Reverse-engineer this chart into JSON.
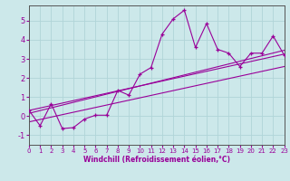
{
  "xlabel": "Windchill (Refroidissement éolien,°C)",
  "background_color": "#cce8ea",
  "grid_color": "#b0d4d8",
  "line_color": "#990099",
  "axis_color": "#555555",
  "xlim": [
    0,
    23
  ],
  "ylim": [
    -1.5,
    5.8
  ],
  "xticks": [
    0,
    1,
    2,
    3,
    4,
    5,
    6,
    7,
    8,
    9,
    10,
    11,
    12,
    13,
    14,
    15,
    16,
    17,
    18,
    19,
    20,
    21,
    22,
    23
  ],
  "yticks": [
    -1,
    0,
    1,
    2,
    3,
    4,
    5
  ],
  "series1_x": [
    0,
    1,
    2,
    3,
    4,
    5,
    6,
    7,
    8,
    9,
    10,
    11,
    12,
    13,
    14,
    15,
    16,
    17,
    18,
    19,
    20,
    21,
    22,
    23
  ],
  "series1_y": [
    0.3,
    -0.5,
    0.65,
    -0.65,
    -0.6,
    -0.15,
    0.05,
    0.05,
    1.35,
    1.1,
    2.2,
    2.55,
    4.3,
    5.1,
    5.55,
    3.6,
    4.85,
    3.5,
    3.3,
    2.6,
    3.3,
    3.3,
    4.2,
    3.2
  ],
  "trend1_x": [
    0,
    23
  ],
  "trend1_y": [
    0.3,
    3.25
  ],
  "trend2_x": [
    0,
    23
  ],
  "trend2_y": [
    -0.3,
    2.6
  ],
  "trend3_x": [
    0,
    23
  ],
  "trend3_y": [
    0.15,
    3.45
  ]
}
